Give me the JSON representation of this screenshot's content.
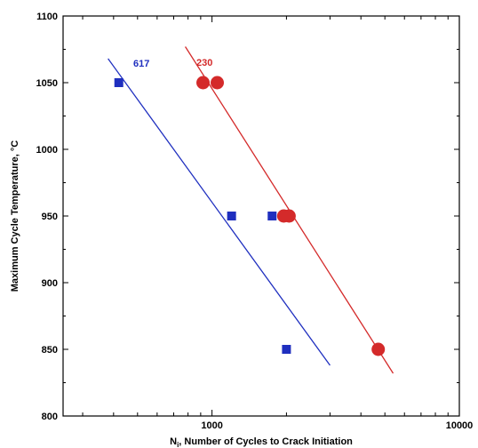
{
  "chart_data": {
    "type": "scatter",
    "xlabel": "N",
    "xlabel_subscript": "i",
    "xlabel_rest": ", Number of Cycles to Crack Initiation",
    "ylabel": "Maximum Cycle Temperature, °C",
    "x_scale": "log",
    "xlim": [
      250,
      10000
    ],
    "ylim": [
      800,
      1100
    ],
    "x_ticks": [
      1000,
      10000
    ],
    "x_tick_labels": [
      "1000",
      "10000"
    ],
    "y_ticks": [
      800,
      850,
      900,
      950,
      1000,
      1050,
      1100
    ],
    "y_tick_labels": [
      "800",
      "850",
      "900",
      "950",
      "1000",
      "1050",
      "1100"
    ],
    "grid": false,
    "series": [
      {
        "name": "617",
        "color": "#1f2fbf",
        "marker": "square",
        "points": [
          [
            420,
            1050
          ],
          [
            1200,
            950
          ],
          [
            1750,
            950
          ],
          [
            2000,
            850
          ]
        ],
        "fit": [
          [
            380,
            1068
          ],
          [
            3000,
            838
          ]
        ]
      },
      {
        "name": "230",
        "color": "#d42a2a",
        "marker": "circle",
        "points": [
          [
            920,
            1050
          ],
          [
            1050,
            1050
          ],
          [
            1950,
            950
          ],
          [
            2050,
            950
          ],
          [
            4700,
            850
          ]
        ],
        "fit": [
          [
            780,
            1077
          ],
          [
            5400,
            832
          ]
        ]
      }
    ]
  }
}
